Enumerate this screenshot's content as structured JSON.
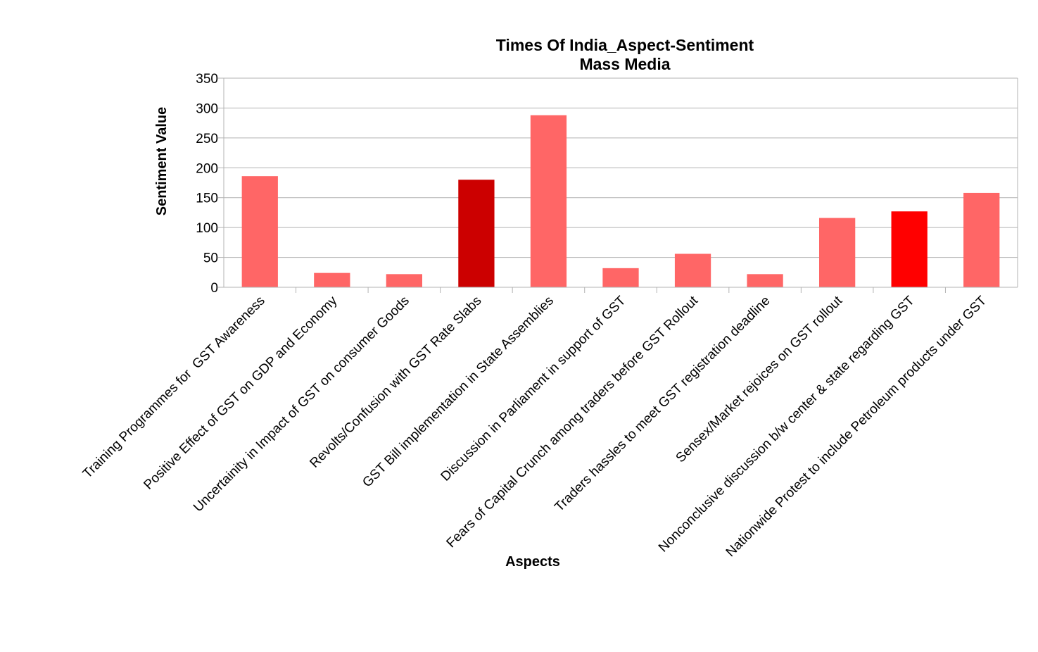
{
  "chart_data": {
    "type": "bar",
    "title": [
      "Times Of India_Aspect-Sentiment",
      "Mass Media"
    ],
    "xlabel": "Aspects",
    "ylabel": "Sentiment Value",
    "ylim": [
      0,
      350
    ],
    "yticks": [
      0,
      50,
      100,
      150,
      200,
      250,
      300,
      350
    ],
    "grid": true,
    "categories": [
      "Training Programmes for  GST Awareness",
      "Positive Effect of GST on GDP and Economy",
      "Uncertainity in Impact of GST on consumer Goods",
      "Revolts/Confusion with GST Rate Slabs",
      "GST Bill implementation in State Assemblies",
      "Discussion in Parliament in support of GST",
      "Fears of Capital Crunch among traders before GST Rollout",
      "Traders hassles to meet GST registration deadline",
      "Sensex/Market rejoices on GST rollout",
      "Nonconclusive discussion b/w center & state regarding GST",
      "Nationwide Protest to include Petroleum products under GST"
    ],
    "values": [
      186,
      24,
      22,
      180,
      288,
      32,
      56,
      22,
      116,
      127,
      158
    ],
    "colors": [
      "#ff6666",
      "#ff6666",
      "#ff6666",
      "#cc0000",
      "#ff6666",
      "#ff6666",
      "#ff6666",
      "#ff6666",
      "#ff6666",
      "#ff0000",
      "#ff6666"
    ]
  }
}
